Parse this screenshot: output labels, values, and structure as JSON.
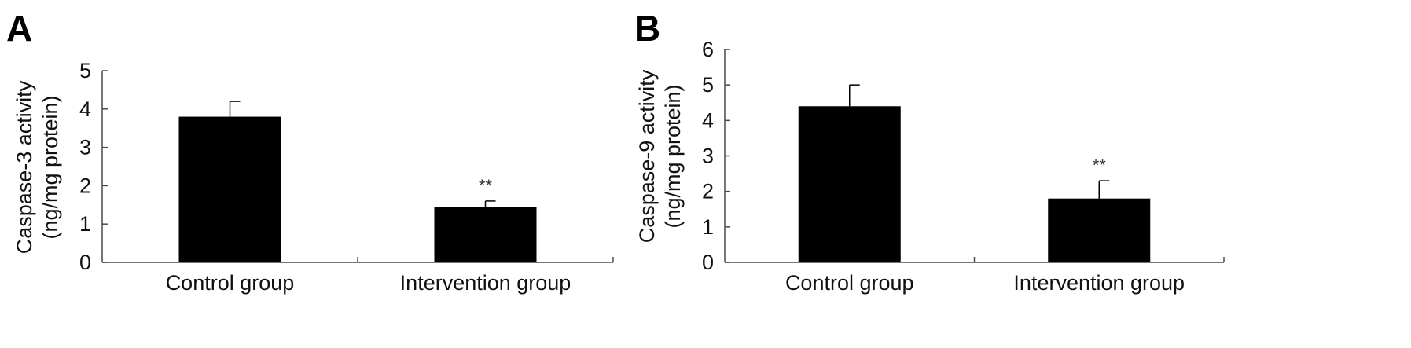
{
  "chart_data": [
    {
      "type": "bar",
      "panel_label": "A",
      "categories": [
        "Control group",
        "Intervention group"
      ],
      "values": [
        3.8,
        1.45
      ],
      "error_upper": [
        0.4,
        0.15
      ],
      "annotations": [
        "",
        "**"
      ],
      "ylabel": [
        "Caspase-3 activity",
        "(ng/mg protein)"
      ],
      "yticks": [
        0,
        1,
        2,
        3,
        4,
        5
      ],
      "ylim": [
        0,
        5
      ],
      "bar_color": "#000000"
    },
    {
      "type": "bar",
      "panel_label": "B",
      "categories": [
        "Control group",
        "Intervention group"
      ],
      "values": [
        4.4,
        1.8
      ],
      "error_upper": [
        0.6,
        0.5
      ],
      "annotations": [
        "",
        "**"
      ],
      "ylabel": [
        "Caspase-9 activity",
        "(ng/mg protein)"
      ],
      "yticks": [
        0,
        1,
        2,
        3,
        4,
        5,
        6
      ],
      "ylim": [
        0,
        6
      ],
      "bar_color": "#000000"
    }
  ]
}
